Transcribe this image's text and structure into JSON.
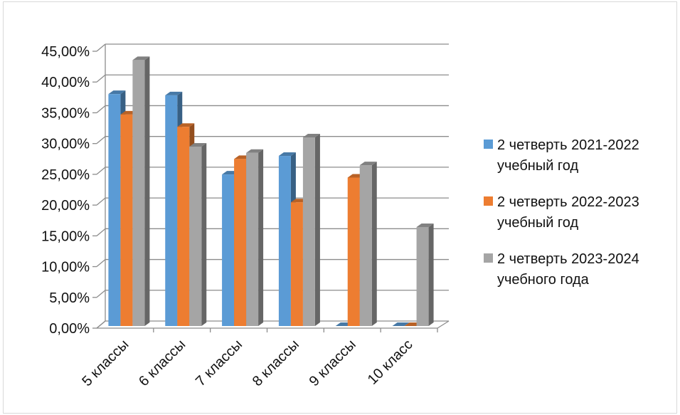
{
  "chart_data": {
    "type": "bar",
    "categories": [
      "5 классы",
      "6 классы",
      "7 классы",
      "8 классы",
      "9 классы",
      "10 класс"
    ],
    "series": [
      {
        "name": "2 четверть 2021-2022 учебный год",
        "color": "#5B9BD5",
        "values": [
          0.375,
          0.373,
          0.245,
          0.275,
          0.0,
          0.0
        ]
      },
      {
        "name": "2 четверть 2022-2023 учебный год",
        "color": "#ED7D31",
        "values": [
          0.342,
          0.322,
          0.27,
          0.2,
          0.24,
          0.0
        ]
      },
      {
        "name": "2 четверть 2023-2024 учебного года",
        "color": "#A5A5A5",
        "values": [
          0.43,
          0.29,
          0.28,
          0.305,
          0.26,
          0.16
        ]
      }
    ],
    "y_ticks": [
      "0,00%",
      "5,00%",
      "10,00%",
      "15,00%",
      "20,00%",
      "25,00%",
      "30,00%",
      "35,00%",
      "40,00%",
      "45,00%"
    ],
    "ylim": [
      0,
      0.45
    ],
    "grid": true,
    "legend_position": "right",
    "style": "3d-clustered-column"
  }
}
